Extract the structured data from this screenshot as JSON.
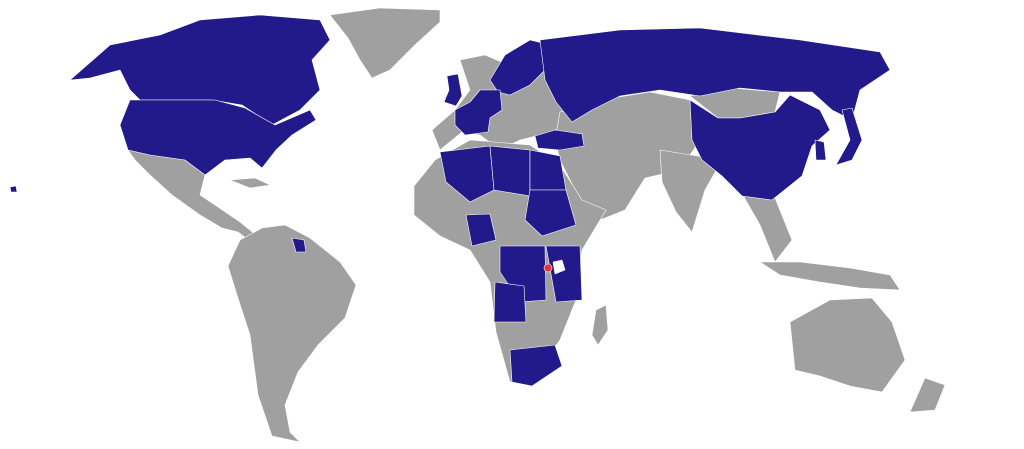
{
  "map": {
    "type": "world choropleth",
    "colors": {
      "background": "#ffffff",
      "highlighted": "#22198b",
      "other": "#a0a0a0",
      "special": "#e8333c",
      "border": "#ffffff"
    }
  }
}
